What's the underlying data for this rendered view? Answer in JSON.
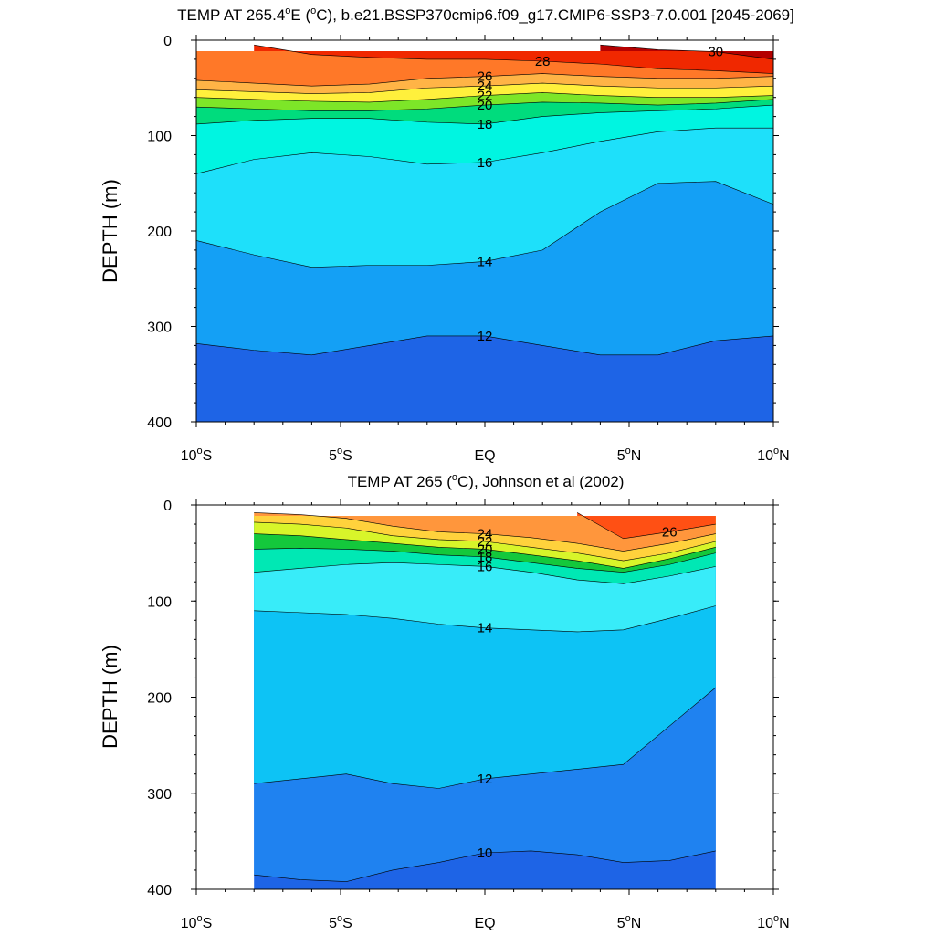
{
  "chart_data": [
    {
      "type": "heatmap",
      "title_main": "TEMP AT 265.4",
      "title_unit_a": "E (",
      "title_unit_b": "C), b.e21.BSSP370cmip6.f09_g17.CMIP6-SSP3-7.0.001 [2045-2069]",
      "title_sup": "o",
      "ylabel": "DEPTH (m)",
      "xlabel": "",
      "xlim": [
        -10,
        10
      ],
      "ylim": [
        400,
        0
      ],
      "x_ticks": [
        {
          "value": -10,
          "text": "10",
          "sup": "o",
          "suffix": "S"
        },
        {
          "value": -5,
          "text": "5",
          "sup": "o",
          "suffix": "S"
        },
        {
          "value": 0,
          "text": "EQ",
          "sup": "",
          "suffix": ""
        },
        {
          "value": 5,
          "text": "5",
          "sup": "o",
          "suffix": "N"
        },
        {
          "value": 10,
          "text": "10",
          "sup": "o",
          "suffix": "N"
        }
      ],
      "y_ticks": [
        0,
        100,
        200,
        300,
        400
      ],
      "data_x_range": [
        -10,
        10
      ],
      "depth_levels": [
        0,
        40,
        60,
        80,
        100,
        130,
        160,
        200,
        240,
        300,
        350,
        400
      ],
      "isotherms": [
        {
          "value": 30,
          "depth": [
            null,
            null,
            null,
            null,
            null,
            null,
            null,
            5,
            10,
            12,
            20
          ]
        },
        {
          "value": 28,
          "depth": [
            null,
            5,
            15,
            18,
            20,
            20,
            22,
            25,
            30,
            32,
            35
          ]
        },
        {
          "value": 26,
          "depth": [
            42,
            45,
            48,
            46,
            40,
            38,
            35,
            38,
            40,
            40,
            38
          ]
        },
        {
          "value": 24,
          "depth": [
            52,
            54,
            56,
            55,
            50,
            48,
            45,
            48,
            50,
            50,
            48
          ]
        },
        {
          "value": 22,
          "depth": [
            60,
            62,
            64,
            65,
            62,
            58,
            55,
            58,
            60,
            60,
            58
          ]
        },
        {
          "value": 20,
          "depth": [
            70,
            72,
            74,
            74,
            72,
            68,
            65,
            66,
            68,
            66,
            62
          ]
        },
        {
          "value": 18,
          "depth": [
            88,
            84,
            82,
            82,
            86,
            88,
            80,
            76,
            74,
            72,
            68
          ]
        },
        {
          "value": 16,
          "depth": [
            140,
            125,
            118,
            122,
            130,
            128,
            118,
            106,
            96,
            92,
            92
          ]
        },
        {
          "value": 14,
          "depth": [
            210,
            225,
            238,
            236,
            236,
            232,
            220,
            180,
            150,
            148,
            172
          ]
        },
        {
          "value": 12,
          "depth": [
            318,
            325,
            330,
            320,
            310,
            310,
            320,
            330,
            330,
            315,
            310
          ]
        }
      ],
      "levels": [
        10,
        11,
        12,
        13,
        14,
        15,
        16,
        17,
        18,
        19,
        20,
        21,
        22,
        23,
        24,
        25,
        26,
        27,
        28,
        29,
        30
      ],
      "colors": [
        "#1e64e6",
        "#1f82f0",
        "#14a0f5",
        "#0dc3f5",
        "#1ee0fa",
        "#38ecf9",
        "#00f5e1",
        "#00e8b4",
        "#00dc7d",
        "#14c83c",
        "#7de628",
        "#d8f52a",
        "#fff03c",
        "#ffd23c",
        "#ffb446",
        "#ff963c",
        "#ff7828",
        "#ff5014",
        "#f02800",
        "#dc0a00",
        "#b40000"
      ],
      "contour_labels": [
        "30",
        "28",
        "26",
        "24",
        "22",
        "20",
        "18",
        "16",
        "14",
        "12"
      ]
    },
    {
      "type": "heatmap",
      "title_main": "TEMP AT 265 (",
      "title_sup": "o",
      "title_unit_b": "C), Johnson et al (2002)",
      "ylabel": "DEPTH (m)",
      "xlabel": "",
      "xlim": [
        -10,
        10
      ],
      "ylim": [
        400,
        0
      ],
      "x_ticks": [
        {
          "value": -10,
          "text": "10",
          "sup": "o",
          "suffix": "S"
        },
        {
          "value": -5,
          "text": "5",
          "sup": "o",
          "suffix": "S"
        },
        {
          "value": 0,
          "text": "EQ",
          "sup": "",
          "suffix": ""
        },
        {
          "value": 5,
          "text": "5",
          "sup": "o",
          "suffix": "N"
        },
        {
          "value": 10,
          "text": "10",
          "sup": "o",
          "suffix": "N"
        }
      ],
      "y_ticks": [
        0,
        100,
        200,
        300,
        400
      ],
      "data_x_range": [
        -8,
        8
      ],
      "isotherms": [
        {
          "value": 26,
          "depth": [
            null,
            null,
            null,
            null,
            null,
            null,
            null,
            8,
            35,
            28,
            20
          ]
        },
        {
          "value": 24,
          "depth": [
            8,
            10,
            14,
            22,
            28,
            30,
            34,
            40,
            48,
            40,
            30
          ]
        },
        {
          "value": 22,
          "depth": [
            18,
            20,
            24,
            32,
            36,
            38,
            44,
            50,
            58,
            50,
            38
          ]
        },
        {
          "value": 20,
          "depth": [
            30,
            32,
            36,
            40,
            44,
            46,
            52,
            58,
            66,
            56,
            44
          ]
        },
        {
          "value": 18,
          "depth": [
            46,
            45,
            46,
            48,
            52,
            54,
            60,
            66,
            70,
            62,
            50
          ]
        },
        {
          "value": 16,
          "depth": [
            70,
            66,
            62,
            60,
            62,
            64,
            70,
            78,
            82,
            74,
            64
          ]
        },
        {
          "value": 14,
          "depth": [
            110,
            112,
            114,
            118,
            124,
            128,
            130,
            132,
            130,
            118,
            105
          ]
        },
        {
          "value": 12,
          "depth": [
            290,
            285,
            280,
            290,
            295,
            285,
            280,
            275,
            270,
            230,
            190
          ]
        },
        {
          "value": 10,
          "depth": [
            385,
            390,
            392,
            380,
            372,
            362,
            360,
            364,
            372,
            370,
            360
          ]
        }
      ],
      "levels": [
        9,
        10,
        11,
        12,
        13,
        14,
        15,
        16,
        17,
        18,
        19,
        20,
        21,
        22,
        23,
        24,
        25,
        26,
        27,
        28
      ],
      "colors": [
        "#1e64e6",
        "#1f82f0",
        "#14a0f5",
        "#0dc3f5",
        "#1ee0fa",
        "#38ecf9",
        "#00f5e1",
        "#00e8b4",
        "#00dc7d",
        "#14c83c",
        "#7de628",
        "#d8f52a",
        "#fff03c",
        "#ffd23c",
        "#ffb446",
        "#ff963c",
        "#ff7828",
        "#ff5014",
        "#f02800",
        "#dc0a00"
      ],
      "contour_labels": [
        "26",
        "24",
        "22",
        "20",
        "18",
        "16",
        "14",
        "12",
        "10"
      ]
    }
  ]
}
